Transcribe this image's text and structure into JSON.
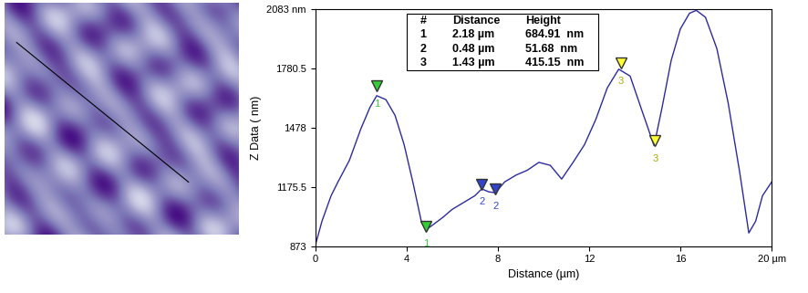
{
  "chart_data": {
    "type": "line",
    "x_label": "Distance (µm)",
    "y_label": "Z Data ( nm)",
    "color": "#2b2ba0",
    "x": [
      0,
      0.3,
      0.7,
      1.0,
      1.5,
      2.0,
      2.4,
      2.7,
      3.1,
      3.5,
      3.9,
      4.3,
      4.65,
      4.85,
      5.2,
      5.6,
      6.0,
      6.5,
      7.0,
      7.3,
      7.6,
      7.9,
      8.3,
      8.8,
      9.3,
      9.8,
      10.3,
      10.8,
      11.3,
      11.8,
      12.3,
      12.8,
      13.3,
      13.8,
      14.3,
      14.85,
      15.2,
      15.6,
      16.0,
      16.4,
      16.7,
      17.1,
      17.6,
      18.1,
      18.6,
      19.0,
      19.3,
      19.6,
      20.0
    ],
    "values": [
      873,
      1000,
      1130,
      1200,
      1310,
      1470,
      1580,
      1640,
      1620,
      1540,
      1390,
      1190,
      1000,
      955,
      985,
      1020,
      1060,
      1095,
      1130,
      1165,
      1150,
      1145,
      1200,
      1235,
      1260,
      1300,
      1285,
      1215,
      1300,
      1390,
      1520,
      1680,
      1775,
      1740,
      1570,
      1385,
      1580,
      1820,
      1980,
      2060,
      2075,
      2040,
      1880,
      1600,
      1250,
      940,
      1000,
      1130,
      1200
    ],
    "xlim": [
      0,
      20
    ],
    "xticks": [
      0,
      4,
      8,
      12,
      16,
      {
        "value": 20,
        "label": "20 µm"
      }
    ],
    "ylim": [
      873,
      2083
    ],
    "yticks": [
      873,
      1175.5,
      1478,
      1780.5,
      {
        "value": 2083,
        "label": "2083 nm"
      }
    ],
    "markers": [
      {
        "name": "1",
        "color": "#33cc33",
        "x": [
          2.7,
          4.85
        ],
        "values": [
          1690,
          975
        ]
      },
      {
        "name": "2",
        "color": "#3344cc",
        "x": [
          7.3,
          7.9
        ],
        "values": [
          1190,
          1165
        ]
      },
      {
        "name": "3",
        "color": "#ffff33",
        "x": [
          13.4,
          14.9
        ],
        "values": [
          1805,
          1410
        ]
      }
    ],
    "table": {
      "columns": [
        "#",
        "Distance",
        "Height"
      ],
      "rows": [
        [
          "1",
          "2.18 µm",
          "684.91  nm"
        ],
        [
          "2",
          "0.48 µm",
          "51.68  nm"
        ],
        [
          "3",
          "1.43 µm",
          "415.15  nm"
        ]
      ]
    }
  }
}
